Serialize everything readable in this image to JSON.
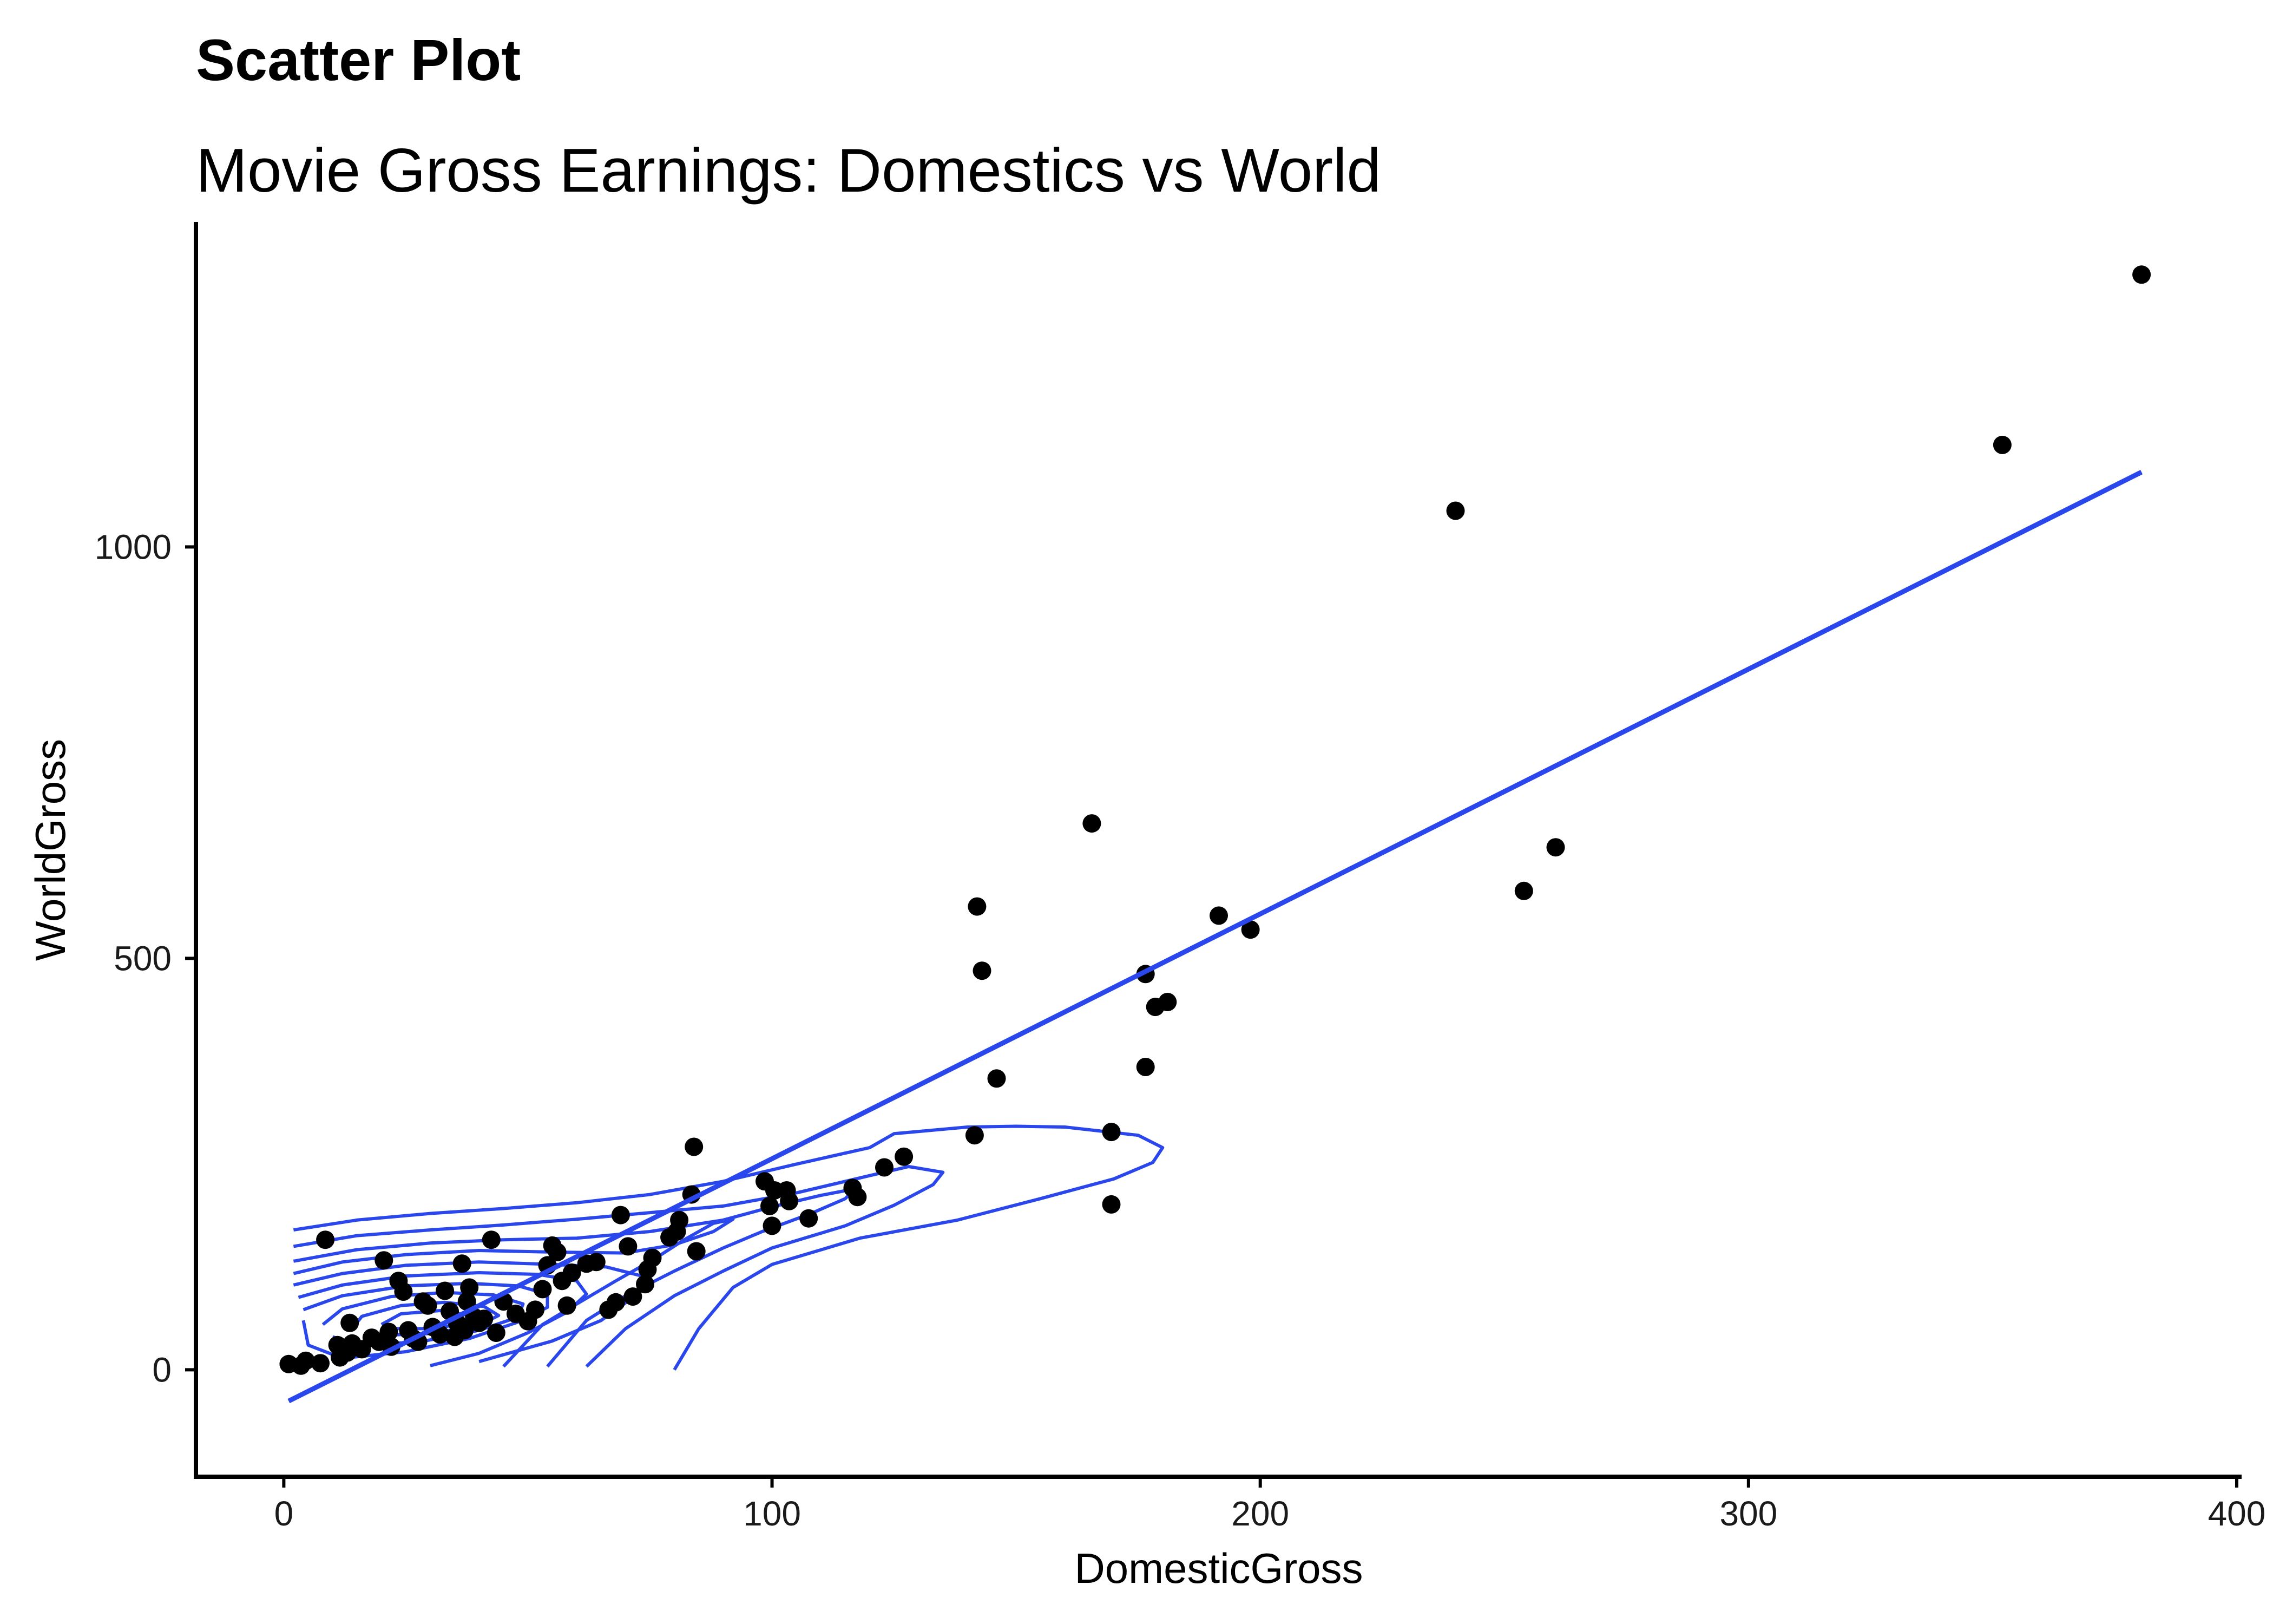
{
  "chart_data": {
    "type": "scatter",
    "title": "Scatter Plot",
    "subtitle": "Movie Gross Earnings: Domestics vs World",
    "xlabel": "DomesticGross",
    "ylabel": "WorldGross",
    "xlim": [
      -18,
      401
    ],
    "ylim": [
      -130,
      1395
    ],
    "xticks": [
      0,
      100,
      200,
      300,
      400
    ],
    "yticks": [
      0,
      500,
      1000
    ],
    "grid": false,
    "legend": "none",
    "colors": {
      "points": "#000000",
      "fit_line": "#2a47ee",
      "density": "#2a47ee",
      "axis": "#000000"
    },
    "points": [
      [
        1.0,
        7
      ],
      [
        4.5,
        11
      ],
      [
        7.5,
        8
      ],
      [
        3.5,
        5
      ],
      [
        8.5,
        158
      ],
      [
        11.0,
        30
      ],
      [
        11.5,
        15
      ],
      [
        13.0,
        21
      ],
      [
        14.0,
        32
      ],
      [
        13.5,
        57
      ],
      [
        16.0,
        25
      ],
      [
        18.0,
        39
      ],
      [
        19.5,
        34
      ],
      [
        20.5,
        133
      ],
      [
        21.5,
        46
      ],
      [
        22.0,
        28
      ],
      [
        23.5,
        108
      ],
      [
        24.5,
        95
      ],
      [
        25.5,
        48
      ],
      [
        26.5,
        38
      ],
      [
        27.5,
        34
      ],
      [
        28.5,
        83
      ],
      [
        29.5,
        78
      ],
      [
        30.5,
        52
      ],
      [
        32.0,
        43
      ],
      [
        33.0,
        96
      ],
      [
        34.0,
        71
      ],
      [
        35.0,
        40
      ],
      [
        35.5,
        57
      ],
      [
        36.5,
        129
      ],
      [
        37.0,
        48
      ],
      [
        37.5,
        83
      ],
      [
        38.0,
        100
      ],
      [
        39.0,
        64
      ],
      [
        40.0,
        57
      ],
      [
        41.0,
        62
      ],
      [
        42.5,
        158
      ],
      [
        43.5,
        45
      ],
      [
        45.0,
        83
      ],
      [
        47.5,
        68
      ],
      [
        50.0,
        59
      ],
      [
        51.5,
        73
      ],
      [
        53.0,
        98
      ],
      [
        54.0,
        127
      ],
      [
        55.0,
        151
      ],
      [
        56.0,
        143
      ],
      [
        57.0,
        108
      ],
      [
        58.0,
        78
      ],
      [
        59.0,
        118
      ],
      [
        62.0,
        129
      ],
      [
        64.0,
        131
      ],
      [
        66.5,
        73
      ],
      [
        68.0,
        82
      ],
      [
        69.0,
        188
      ],
      [
        70.5,
        150
      ],
      [
        71.5,
        89
      ],
      [
        74.0,
        104
      ],
      [
        74.5,
        122
      ],
      [
        75.5,
        136
      ],
      [
        79.0,
        161
      ],
      [
        80.5,
        168
      ],
      [
        81.0,
        182
      ],
      [
        83.5,
        213
      ],
      [
        84.0,
        271
      ],
      [
        84.5,
        144
      ],
      [
        98.5,
        229
      ],
      [
        99.5,
        199
      ],
      [
        100.0,
        175
      ],
      [
        100.5,
        218
      ],
      [
        103.0,
        218
      ],
      [
        103.5,
        205
      ],
      [
        107.5,
        184
      ],
      [
        116.5,
        221
      ],
      [
        117.5,
        210
      ],
      [
        123.0,
        246
      ],
      [
        127.0,
        259
      ],
      [
        141.5,
        285
      ],
      [
        142.0,
        563
      ],
      [
        143.0,
        485
      ],
      [
        146.0,
        354
      ],
      [
        165.5,
        664
      ],
      [
        169.5,
        201
      ],
      [
        169.5,
        289
      ],
      [
        176.5,
        481
      ],
      [
        176.5,
        368
      ],
      [
        178.5,
        441
      ],
      [
        181.0,
        447
      ],
      [
        191.5,
        552
      ],
      [
        198.0,
        535
      ],
      [
        240.0,
        1044
      ],
      [
        254.0,
        582
      ],
      [
        260.5,
        635
      ],
      [
        352.0,
        1124
      ],
      [
        380.5,
        1331
      ]
    ],
    "fit_line": {
      "x": [
        1.0,
        380.5
      ],
      "y": [
        -38,
        1091
      ]
    },
    "density_contours": [
      [
        [
          2,
          170
        ],
        [
          15,
          182
        ],
        [
          30,
          190
        ],
        [
          45,
          196
        ],
        [
          60,
          203
        ],
        [
          75,
          213
        ],
        [
          90,
          229
        ],
        [
          105,
          250
        ],
        [
          120,
          270
        ],
        [
          125,
          287
        ],
        [
          140,
          295
        ],
        [
          150,
          296
        ],
        [
          160,
          295
        ],
        [
          175,
          285
        ],
        [
          180,
          270
        ],
        [
          178,
          252
        ],
        [
          170,
          232
        ],
        [
          155,
          208
        ],
        [
          138,
          182
        ],
        [
          118,
          160
        ],
        [
          100,
          128
        ],
        [
          92,
          100
        ],
        [
          85,
          50
        ],
        [
          80,
          0
        ]
      ],
      [
        [
          2,
          150
        ],
        [
          15,
          163
        ],
        [
          30,
          170
        ],
        [
          45,
          176
        ],
        [
          60,
          183
        ],
        [
          75,
          191
        ],
        [
          90,
          199
        ],
        [
          105,
          215
        ],
        [
          120,
          236
        ],
        [
          128,
          247
        ],
        [
          135,
          240
        ],
        [
          133,
          225
        ],
        [
          125,
          200
        ],
        [
          115,
          175
        ],
        [
          100,
          148
        ],
        [
          90,
          120
        ],
        [
          80,
          90
        ],
        [
          70,
          50
        ],
        [
          62,
          4
        ]
      ],
      [
        [
          2,
          132
        ],
        [
          15,
          146
        ],
        [
          30,
          154
        ],
        [
          45,
          158
        ],
        [
          60,
          160
        ],
        [
          75,
          168
        ],
        [
          90,
          182
        ],
        [
          100,
          198
        ],
        [
          110,
          212
        ],
        [
          117,
          220
        ],
        [
          115,
          208
        ],
        [
          108,
          190
        ],
        [
          98,
          168
        ],
        [
          90,
          148
        ],
        [
          80,
          120
        ],
        [
          70,
          90
        ],
        [
          62,
          60
        ],
        [
          54,
          4
        ]
      ],
      [
        [
          2,
          117
        ],
        [
          12,
          131
        ],
        [
          25,
          140
        ],
        [
          40,
          145
        ],
        [
          55,
          143
        ],
        [
          70,
          142
        ],
        [
          80,
          152
        ],
        [
          88,
          168
        ],
        [
          92,
          183
        ],
        [
          88,
          178
        ],
        [
          82,
          158
        ],
        [
          76,
          135
        ],
        [
          68,
          108
        ],
        [
          60,
          80
        ],
        [
          53,
          55
        ],
        [
          45,
          4
        ]
      ],
      [
        [
          2,
          103
        ],
        [
          12,
          117
        ],
        [
          25,
          127
        ],
        [
          40,
          131
        ],
        [
          55,
          128
        ],
        [
          66,
          125
        ],
        [
          74,
          113
        ],
        [
          72,
          90
        ],
        [
          65,
          60
        ],
        [
          55,
          35
        ],
        [
          40,
          10
        ]
      ],
      [
        [
          3,
          88
        ],
        [
          12,
          103
        ],
        [
          25,
          114
        ],
        [
          40,
          118
        ],
        [
          52,
          116
        ],
        [
          60,
          108
        ],
        [
          62,
          92
        ],
        [
          58,
          70
        ],
        [
          50,
          45
        ],
        [
          40,
          20
        ],
        [
          30,
          5
        ]
      ],
      [
        [
          4,
          73
        ],
        [
          12,
          90
        ],
        [
          25,
          102
        ],
        [
          38,
          105
        ],
        [
          48,
          102
        ],
        [
          54,
          92
        ],
        [
          54,
          76
        ],
        [
          48,
          58
        ],
        [
          38,
          38
        ],
        [
          25,
          22
        ],
        [
          12,
          14
        ],
        [
          5,
          30
        ],
        [
          4,
          60
        ]
      ],
      [
        [
          8,
          55
        ],
        [
          12,
          74
        ],
        [
          22,
          89
        ],
        [
          33,
          94
        ],
        [
          43,
          91
        ],
        [
          49,
          80
        ],
        [
          48,
          64
        ],
        [
          40,
          48
        ],
        [
          28,
          34
        ],
        [
          16,
          30
        ],
        [
          10,
          40
        ]
      ],
      [
        [
          14,
          50
        ],
        [
          16,
          65
        ],
        [
          24,
          78
        ],
        [
          33,
          82
        ],
        [
          41,
          77
        ],
        [
          44,
          66
        ],
        [
          40,
          54
        ],
        [
          30,
          44
        ],
        [
          20,
          42
        ]
      ],
      [
        [
          20,
          55
        ],
        [
          24,
          68
        ],
        [
          32,
          72
        ],
        [
          38,
          66
        ],
        [
          37,
          56
        ],
        [
          30,
          50
        ],
        [
          23,
          50
        ]
      ]
    ]
  }
}
